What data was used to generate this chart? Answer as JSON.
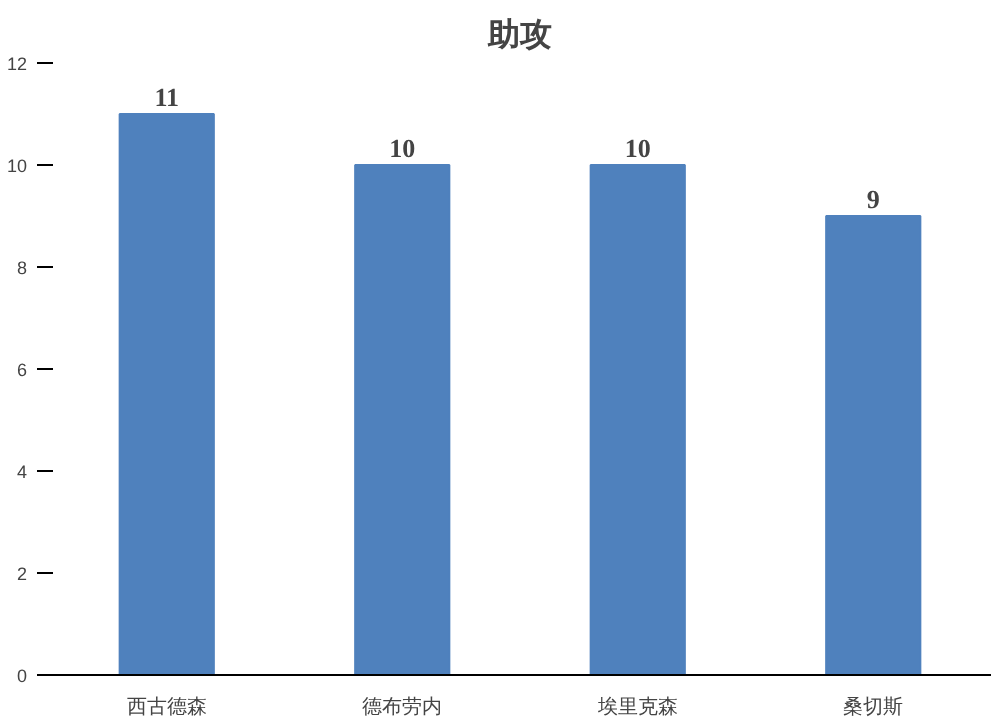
{
  "chart_data": {
    "type": "bar",
    "title": "助攻",
    "categories": [
      "西古德森",
      "德布劳内",
      "埃里克森",
      "桑切斯"
    ],
    "values": [
      11,
      10,
      10,
      9
    ],
    "color": "#4f81bd",
    "ylim": [
      0,
      12
    ],
    "yticks": [
      0,
      2,
      4,
      6,
      8,
      10,
      12
    ],
    "data_labels": true
  }
}
